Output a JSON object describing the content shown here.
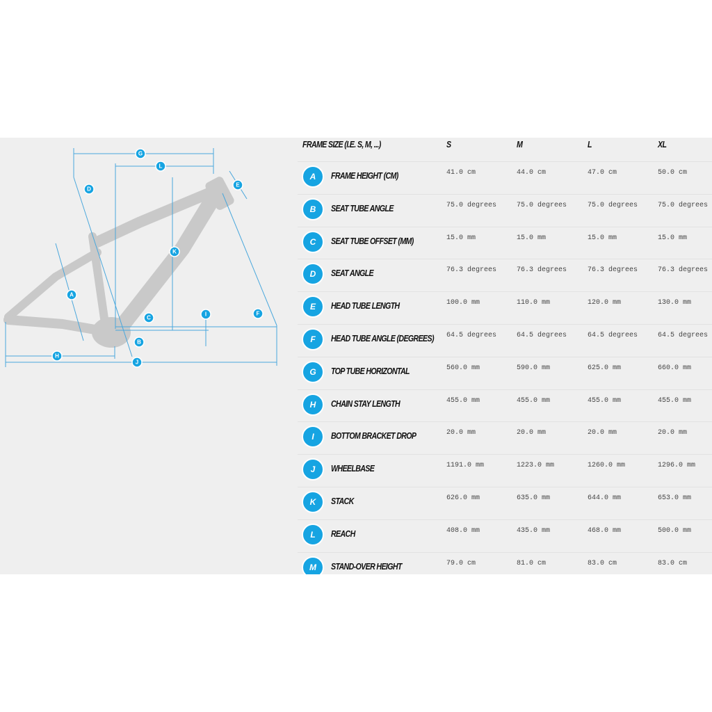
{
  "diagram": {
    "labels": [
      "G",
      "L",
      "D",
      "E",
      "K",
      "A",
      "I",
      "F",
      "C",
      "B",
      "H",
      "J"
    ]
  },
  "table": {
    "header": [
      "FRAME SIZE (I.E. S, M, ...)",
      "S",
      "M",
      "L",
      "XL"
    ],
    "rows": [
      [
        "A",
        "FRAME HEIGHT (CM)",
        "41.0 cm",
        "44.0 cm",
        "47.0 cm",
        "50.0 cm"
      ],
      [
        "B",
        "SEAT TUBE ANGLE",
        "75.0 degrees",
        "75.0 degrees",
        "75.0 degrees",
        "75.0 degrees"
      ],
      [
        "C",
        "SEAT TUBE OFFSET (MM)",
        "15.0 mm",
        "15.0 mm",
        "15.0 mm",
        "15.0 mm"
      ],
      [
        "D",
        "SEAT ANGLE",
        "76.3 degrees",
        "76.3 degrees",
        "76.3 degrees",
        "76.3 degrees"
      ],
      [
        "E",
        "HEAD TUBE LENGTH",
        "100.0 mm",
        "110.0 mm",
        "120.0 mm",
        "130.0 mm"
      ],
      [
        "F",
        "HEAD TUBE ANGLE (DEGREES)",
        "64.5 degrees",
        "64.5 degrees",
        "64.5 degrees",
        "64.5 degrees"
      ],
      [
        "G",
        "TOP TUBE HORIZONTAL",
        "560.0 mm",
        "590.0 mm",
        "625.0 mm",
        "660.0 mm"
      ],
      [
        "H",
        "CHAIN STAY LENGTH",
        "455.0 mm",
        "455.0 mm",
        "455.0 mm",
        "455.0 mm"
      ],
      [
        "I",
        "BOTTOM BRACKET DROP",
        "20.0 mm",
        "20.0 mm",
        "20.0 mm",
        "20.0 mm"
      ],
      [
        "J",
        "WHEELBASE",
        "1191.0 mm",
        "1223.0 mm",
        "1260.0 mm",
        "1296.0 mm"
      ],
      [
        "K",
        "STACK",
        "626.0 mm",
        "635.0 mm",
        "644.0 mm",
        "653.0 mm"
      ],
      [
        "L",
        "REACH",
        "408.0 mm",
        "435.0 mm",
        "468.0 mm",
        "500.0 mm"
      ],
      [
        "M",
        "STAND-OVER HEIGHT",
        "79.0 cm",
        "81.0 cm",
        "83.0 cm",
        "83.0 cm"
      ]
    ]
  }
}
